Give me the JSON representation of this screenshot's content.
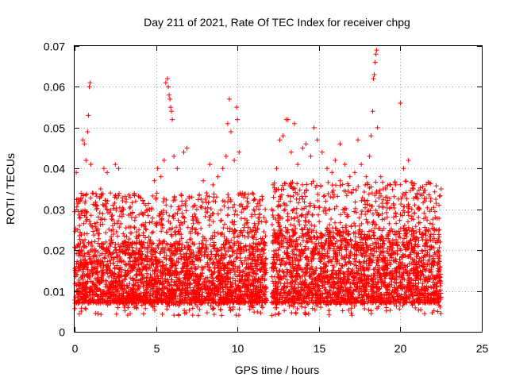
{
  "chart_data": {
    "type": "scatter",
    "title": "Day 211 of 2021, Rate Of TEC Index for receiver chpg",
    "xlabel": "GPS time / hours",
    "ylabel": "ROTI / TECUs",
    "xlim": [
      0,
      25
    ],
    "ylim": [
      0,
      0.07
    ],
    "x_ticks": [
      0,
      5,
      10,
      15,
      20,
      25
    ],
    "x_tick_labels": [
      "0",
      "5",
      "10",
      "15",
      "20",
      "25"
    ],
    "y_ticks": [
      0,
      0.01,
      0.02,
      0.03,
      0.04,
      0.05,
      0.06,
      0.07
    ],
    "y_tick_labels": [
      "0",
      "0.01",
      "0.02",
      "0.03",
      "0.04",
      "0.05",
      "0.06",
      "0.07"
    ],
    "grid": true,
    "marker": "plus",
    "series": [
      {
        "name": "ROTI",
        "color": "#ff0000",
        "description_segments": [
          {
            "x_range": [
              0.0,
              11.8
            ],
            "typical_range": [
              0.007,
              0.022
            ]
          },
          {
            "x_range": [
              12.1,
              22.5
            ],
            "typical_range": [
              0.007,
              0.025
            ]
          }
        ],
        "points": [
          [
            0.1,
            0.039
          ],
          [
            0.3,
            0.026
          ],
          [
            0.5,
            0.047
          ],
          [
            0.6,
            0.046
          ],
          [
            0.7,
            0.042
          ],
          [
            0.8,
            0.049
          ],
          [
            0.85,
            0.053
          ],
          [
            0.9,
            0.06
          ],
          [
            0.95,
            0.061
          ],
          [
            1.0,
            0.041
          ],
          [
            1.1,
            0.034
          ],
          [
            1.3,
            0.031
          ],
          [
            1.6,
            0.035
          ],
          [
            1.8,
            0.04
          ],
          [
            2.0,
            0.039
          ],
          [
            2.2,
            0.034
          ],
          [
            2.5,
            0.041
          ],
          [
            2.7,
            0.04
          ],
          [
            3.0,
            0.03
          ],
          [
            3.5,
            0.028
          ],
          [
            4.0,
            0.033
          ],
          [
            4.5,
            0.03
          ],
          [
            4.9,
            0.037
          ],
          [
            5.1,
            0.04
          ],
          [
            5.3,
            0.038
          ],
          [
            5.5,
            0.042
          ],
          [
            5.6,
            0.061
          ],
          [
            5.7,
            0.062
          ],
          [
            5.75,
            0.06
          ],
          [
            5.8,
            0.058
          ],
          [
            5.85,
            0.057
          ],
          [
            5.9,
            0.055
          ],
          [
            5.95,
            0.054
          ],
          [
            6.0,
            0.052
          ],
          [
            6.1,
            0.043
          ],
          [
            6.3,
            0.04
          ],
          [
            6.7,
            0.044
          ],
          [
            6.9,
            0.045
          ],
          [
            7.2,
            0.033
          ],
          [
            7.5,
            0.03
          ],
          [
            7.9,
            0.037
          ],
          [
            8.1,
            0.034
          ],
          [
            8.3,
            0.041
          ],
          [
            8.5,
            0.036
          ],
          [
            8.8,
            0.038
          ],
          [
            9.1,
            0.04
          ],
          [
            9.3,
            0.043
          ],
          [
            9.4,
            0.051
          ],
          [
            9.5,
            0.057
          ],
          [
            9.6,
            0.049
          ],
          [
            9.8,
            0.042
          ],
          [
            9.95,
            0.055
          ],
          [
            10.0,
            0.052
          ],
          [
            10.1,
            0.044
          ],
          [
            10.3,
            0.034
          ],
          [
            10.6,
            0.032
          ],
          [
            11.0,
            0.03
          ],
          [
            11.4,
            0.031
          ],
          [
            11.7,
            0.03
          ],
          [
            12.1,
            0.03
          ],
          [
            12.4,
            0.04
          ],
          [
            12.6,
            0.047
          ],
          [
            12.8,
            0.048
          ],
          [
            13.0,
            0.052
          ],
          [
            13.1,
            0.052
          ],
          [
            13.3,
            0.044
          ],
          [
            13.5,
            0.051
          ],
          [
            13.7,
            0.041
          ],
          [
            14.0,
            0.045
          ],
          [
            14.2,
            0.046
          ],
          [
            14.5,
            0.043
          ],
          [
            14.7,
            0.05
          ],
          [
            14.9,
            0.047
          ],
          [
            15.2,
            0.044
          ],
          [
            15.5,
            0.04
          ],
          [
            15.8,
            0.039
          ],
          [
            16.0,
            0.042
          ],
          [
            16.3,
            0.046
          ],
          [
            16.6,
            0.041
          ],
          [
            16.9,
            0.038
          ],
          [
            17.2,
            0.039
          ],
          [
            17.4,
            0.047
          ],
          [
            17.6,
            0.041
          ],
          [
            17.9,
            0.038
          ],
          [
            18.1,
            0.043
          ],
          [
            18.2,
            0.048
          ],
          [
            18.3,
            0.054
          ],
          [
            18.35,
            0.062
          ],
          [
            18.4,
            0.063
          ],
          [
            18.45,
            0.066
          ],
          [
            18.5,
            0.068
          ],
          [
            18.55,
            0.069
          ],
          [
            18.6,
            0.05
          ],
          [
            18.8,
            0.038
          ],
          [
            19.1,
            0.035
          ],
          [
            19.4,
            0.036
          ],
          [
            19.7,
            0.036
          ],
          [
            20.0,
            0.056
          ],
          [
            20.2,
            0.04
          ],
          [
            20.5,
            0.042
          ],
          [
            20.8,
            0.035
          ],
          [
            21.1,
            0.03
          ],
          [
            21.5,
            0.032
          ],
          [
            21.9,
            0.03
          ],
          [
            22.2,
            0.025
          ],
          [
            22.5,
            0.035
          ]
        ]
      }
    ]
  }
}
